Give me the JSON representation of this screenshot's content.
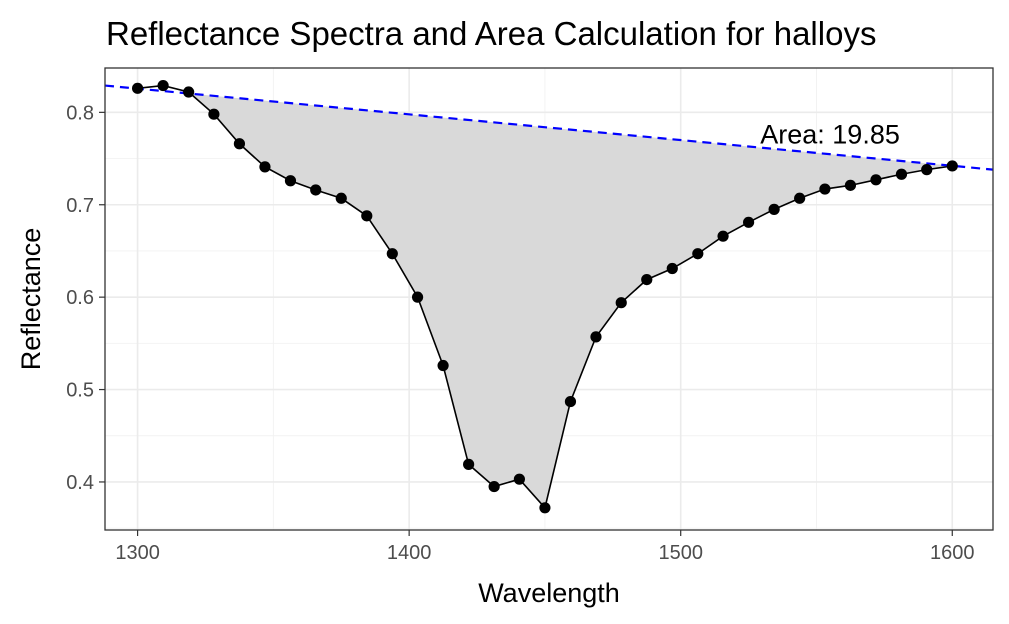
{
  "chart_data": {
    "type": "line",
    "title": "Reflectance Spectra and Area Calculation for halloys",
    "xlabel": "Wavelength",
    "ylabel": "Reflectance",
    "xlim": [
      1288,
      1615
    ],
    "ylim": [
      0.348,
      0.848
    ],
    "xticks": [
      1300,
      1400,
      1500,
      1600
    ],
    "yticks": [
      0.4,
      0.5,
      0.6,
      0.7,
      0.8
    ],
    "grid": true,
    "annotation": {
      "text": "Area: 19.85",
      "x": 1555,
      "y": 0.776
    },
    "series": [
      {
        "style": "line+points",
        "color": "#000000",
        "x": [
          1300,
          1309.4,
          1318.8,
          1328.1,
          1337.5,
          1346.9,
          1356.3,
          1365.6,
          1375,
          1384.4,
          1393.8,
          1403.1,
          1412.5,
          1421.9,
          1431.3,
          1440.6,
          1450,
          1459.4,
          1468.8,
          1478.1,
          1487.5,
          1496.9,
          1506.3,
          1515.6,
          1525,
          1534.4,
          1543.8,
          1553.1,
          1562.5,
          1571.9,
          1581.3,
          1590.6,
          1600
        ],
        "y": [
          0.826,
          0.829,
          0.822,
          0.798,
          0.766,
          0.741,
          0.726,
          0.716,
          0.707,
          0.688,
          0.647,
          0.6,
          0.526,
          0.419,
          0.395,
          0.403,
          0.372,
          0.487,
          0.557,
          0.594,
          0.619,
          0.631,
          0.647,
          0.666,
          0.681,
          0.695,
          0.707,
          0.717,
          0.721,
          0.727,
          0.733,
          0.738,
          0.742
        ]
      },
      {
        "style": "dashed-line",
        "color": "#0000ff",
        "x": [
          1288,
          1615
        ],
        "y": [
          0.829,
          0.738
        ]
      }
    ],
    "shaded_area": {
      "color": "#d9d9d9",
      "x_from": 1318.8,
      "x_to": 1600
    }
  }
}
